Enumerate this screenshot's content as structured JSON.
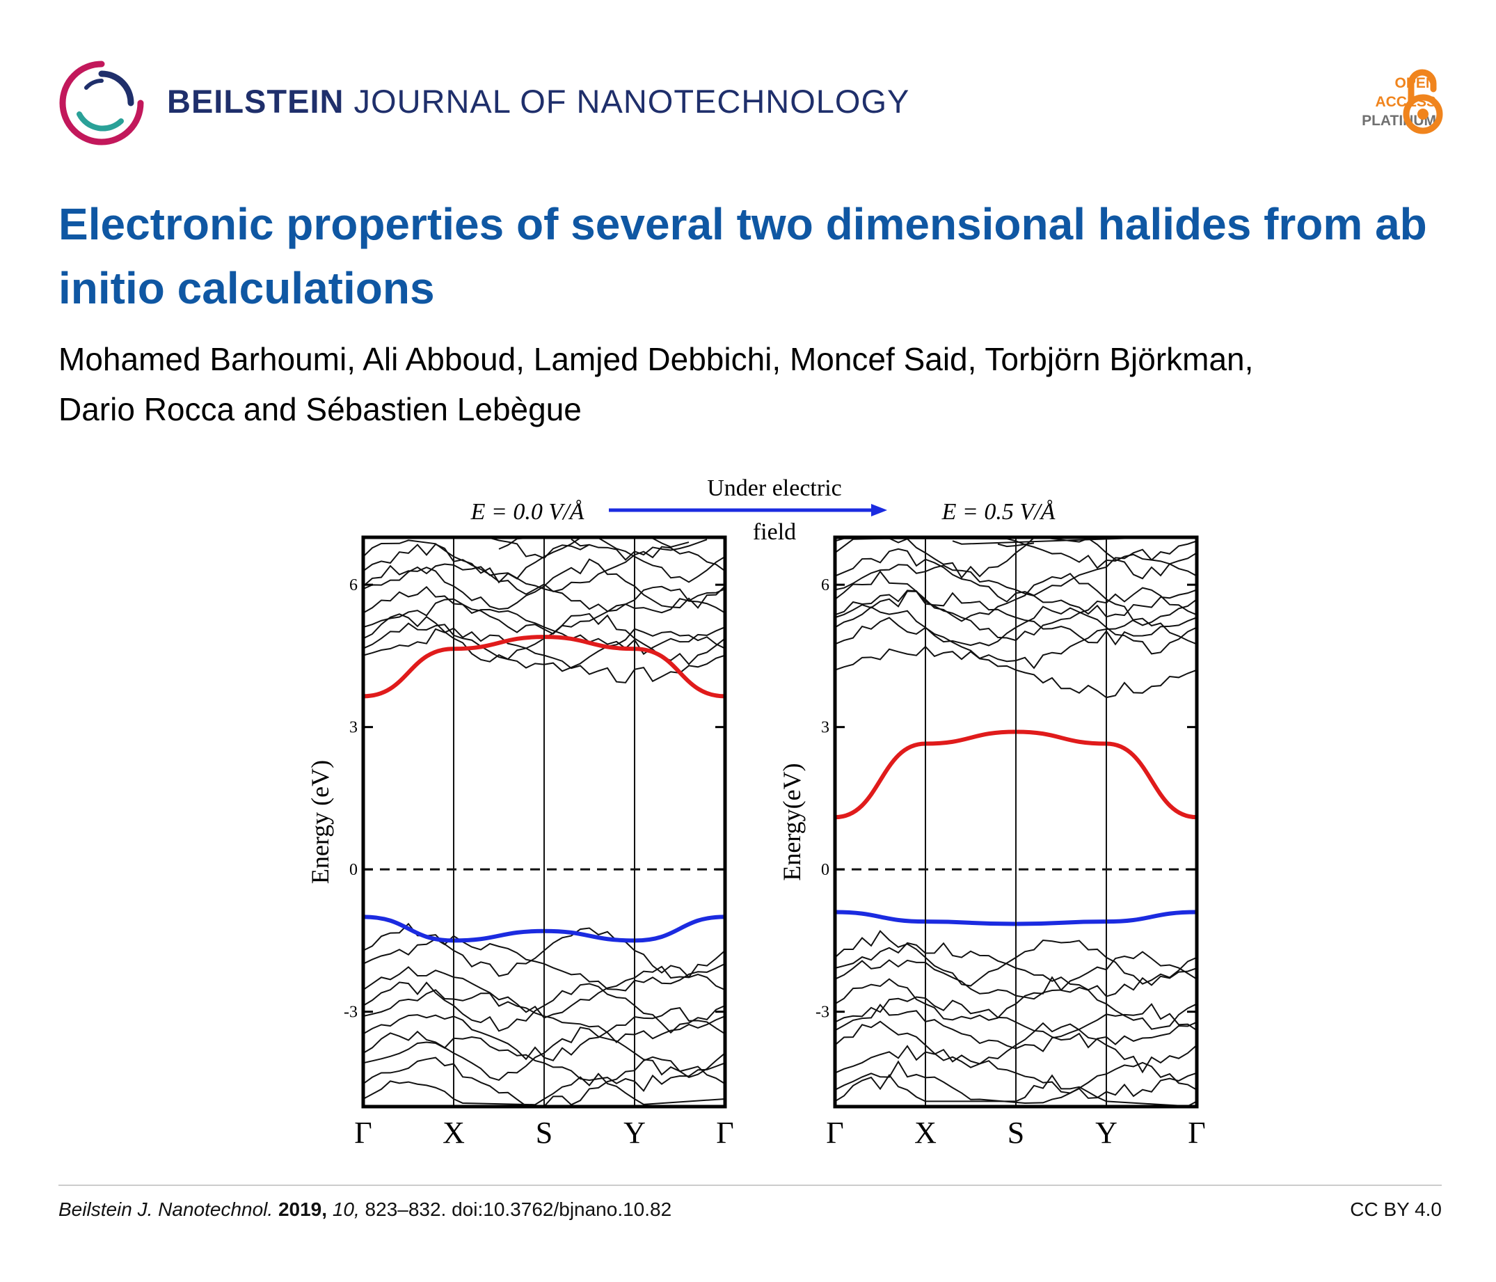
{
  "header": {
    "journal_bold": "BEILSTEIN",
    "journal_rest": "JOURNAL OF NANOTECHNOLOGY",
    "badge": {
      "line1": "OPEN",
      "line2": "ACCESS",
      "line3": "PLATINUM"
    },
    "colors": {
      "brand_navy": "#1f2f6b",
      "badge_orange": "#f0841d",
      "title_blue": "#0f57a3"
    }
  },
  "article": {
    "title": "Electronic properties of several two dimensional halides from ab initio calculations",
    "authors_line1": "Mohamed Barhoumi, Ali Abboud, Lamjed Debbichi, Moncef Said, Torbjörn Björkman,",
    "authors_line2": "Dario Rocca and Sébastien Lebègue"
  },
  "figure": {
    "arrow_text_line1": "Under electric",
    "arrow_text_line2": "field",
    "left_label": "E = 0.0 V/Å",
    "right_label": "E = 0.5 V/Å",
    "left_ylabel": "Energy (eV)",
    "right_ylabel": "Energy(eV)",
    "kpoints": [
      "Γ",
      "X",
      "S",
      "Y",
      "Γ"
    ],
    "yticks": [
      "6",
      "3",
      "0",
      "-3"
    ]
  },
  "chart_data": [
    {
      "type": "line",
      "title": "E = 0.0 V/Å",
      "ylabel": "Energy (eV)",
      "ylim": [
        -5.0,
        7.0
      ],
      "yticks": [
        6,
        3,
        0,
        -3
      ],
      "categories": [
        "Γ",
        "X",
        "S",
        "Y",
        "Γ"
      ],
      "fermi_level": 0,
      "series": [
        {
          "color": "#e01b1b",
          "values": [
            3.65,
            4.65,
            4.9,
            4.65,
            3.65
          ]
        },
        {
          "color": "#1b2be0",
          "values": [
            -1.0,
            -1.5,
            -1.3,
            -1.5,
            -1.0
          ]
        }
      ]
    },
    {
      "type": "line",
      "title": "E = 0.5 V/Å",
      "ylabel": "Energy(eV)",
      "ylim": [
        -5.0,
        7.0
      ],
      "yticks": [
        6,
        3,
        0,
        -3
      ],
      "categories": [
        "Γ",
        "X",
        "S",
        "Y",
        "Γ"
      ],
      "fermi_level": 0,
      "series": [
        {
          "color": "#e01b1b",
          "values": [
            1.1,
            2.65,
            2.9,
            2.65,
            1.1
          ]
        },
        {
          "color": "#1b2be0",
          "values": [
            -0.9,
            -1.1,
            -1.15,
            -1.1,
            -0.9
          ]
        }
      ]
    }
  ],
  "footer": {
    "journal_abbr": "Beilstein J. Nanotechnol.",
    "year": "2019,",
    "volume": "10,",
    "pages_doi": "823–832. doi:10.3762/bjnano.10.82",
    "license": "CC BY 4.0"
  }
}
